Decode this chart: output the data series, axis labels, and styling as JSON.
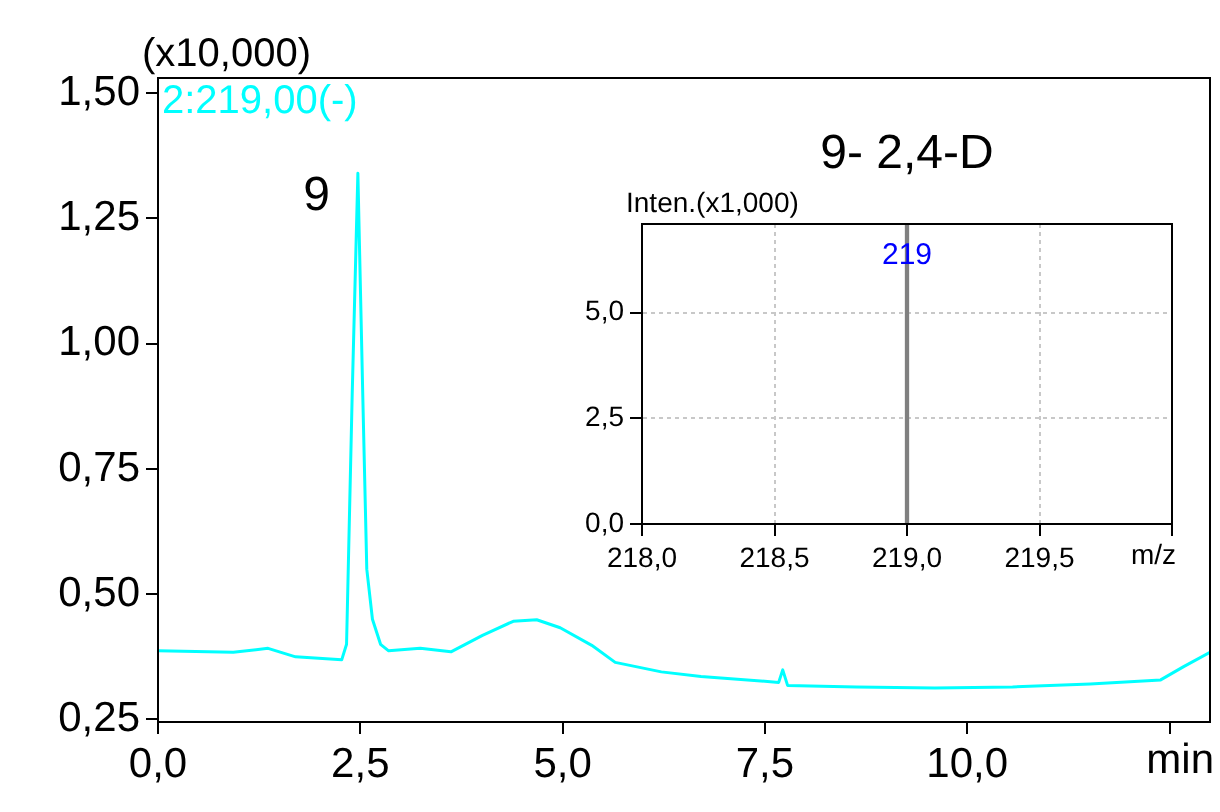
{
  "chart_data": [
    {
      "type": "line",
      "ylabel": "(x10,000)",
      "xlabel": "min",
      "legend": "top left",
      "grid": false,
      "marker": "none",
      "line_style": "solid",
      "xlim": [
        0,
        13.0
      ],
      "xticks": [
        {
          "value": 0,
          "label": "0,0"
        },
        {
          "value": 2.5,
          "label": "2,5"
        },
        {
          "value": 5,
          "label": "5,0"
        },
        {
          "value": 7.5,
          "label": "7,5"
        },
        {
          "value": 10,
          "label": "10,0"
        },
        {
          "value": 12.5,
          "label": null
        }
      ],
      "ylim": [
        0.245,
        1.53
      ],
      "yticks": [
        {
          "value": 0.25,
          "label": "0,25"
        },
        {
          "value": 0.5,
          "label": "0,50"
        },
        {
          "value": 0.75,
          "label": "0,75"
        },
        {
          "value": 1.0,
          "label": "1,00"
        },
        {
          "value": 1.25,
          "label": "1,25"
        },
        {
          "value": 1.5,
          "label": "1,50"
        }
      ],
      "annotations": [
        {
          "text": "9",
          "x": 2.47,
          "y": 1.34
        }
      ],
      "series": [
        {
          "name": "2:219,00(-)",
          "color": "#00ffff",
          "x": [
            0,
            0.93,
            1.36,
            1.7,
            2.27,
            2.33,
            2.4,
            2.47,
            2.53,
            2.58,
            2.65,
            2.75,
            2.85,
            3.24,
            3.62,
            4.01,
            4.39,
            4.68,
            4.97,
            5.36,
            5.65,
            6.22,
            6.71,
            7.67,
            7.72,
            7.78,
            8.63,
            9.6,
            10.56,
            11.52,
            12.39,
            12.68,
            13.0
          ],
          "values": [
            0.387,
            0.384,
            0.392,
            0.375,
            0.369,
            0.4,
            0.9,
            1.34,
            0.9,
            0.55,
            0.45,
            0.4,
            0.387,
            0.392,
            0.385,
            0.418,
            0.446,
            0.449,
            0.433,
            0.398,
            0.364,
            0.345,
            0.336,
            0.324,
            0.349,
            0.318,
            0.315,
            0.313,
            0.315,
            0.321,
            0.329,
            0.356,
            0.384
          ]
        }
      ]
    },
    {
      "type": "bar",
      "title": "9- 2,4-D",
      "ylabel": "Inten.(x1,000)",
      "xlabel": "m/z",
      "grid": true,
      "xlim": [
        218.0,
        220.0
      ],
      "xticks": [
        {
          "value": 218,
          "label": "218,0"
        },
        {
          "value": 218.5,
          "label": "218,5"
        },
        {
          "value": 219,
          "label": "219,0"
        },
        {
          "value": 219.5,
          "label": "219,5"
        },
        {
          "value": 220,
          "label": null
        }
      ],
      "ylim": [
        0,
        7.1
      ],
      "yticks": [
        {
          "value": 0,
          "label": "0,0"
        },
        {
          "value": 2.5,
          "label": "2,5"
        },
        {
          "value": 5,
          "label": "5,0"
        }
      ],
      "annotations": [
        {
          "text": "219",
          "x": 219,
          "y": 6.0
        }
      ],
      "series": [
        {
          "x": [
            219
          ],
          "values": [
            7.1
          ],
          "color": "#808080"
        }
      ]
    }
  ]
}
